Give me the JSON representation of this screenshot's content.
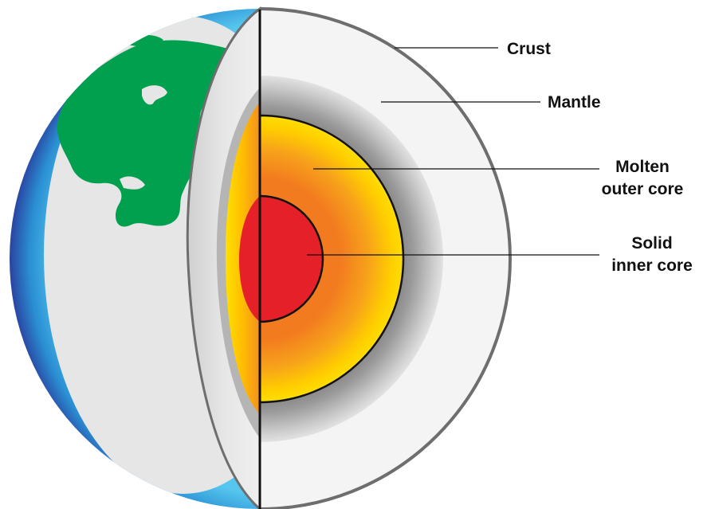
{
  "diagram": {
    "labels": {
      "crust": "Crust",
      "mantle": "Mantle",
      "outer_core_line1": "Molten",
      "outer_core_line2": "outer core",
      "inner_core_line1": "Solid",
      "inner_core_line2": "inner core"
    },
    "colors": {
      "ocean_dark": "#23237a",
      "ocean_light": "#2fa6df",
      "land": "#00a04e",
      "globe_face": "#e6e6e6",
      "crust_outline": "#6e6e6e",
      "mantle": "#f4f4f4",
      "outer_core_outer": "#ffe000",
      "outer_core_inner": "#f27a1f",
      "inner_core": "#e62028",
      "leader_line": "#111111"
    }
  }
}
